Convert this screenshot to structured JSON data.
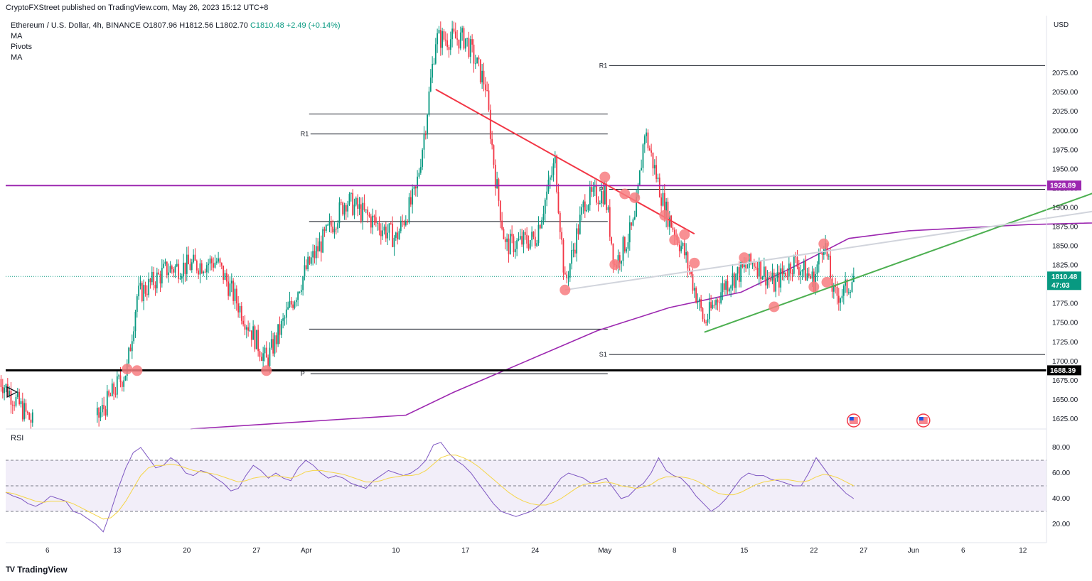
{
  "header": {
    "publisher": "CryptoFXStreet published on TradingView.com, May 26, 2023 15:12 UTC+8"
  },
  "legend": {
    "symbol_line": "Ethereum / U.S. Dollar, 4h, BINANCE",
    "open": "O1807.96",
    "high": "H1812.56",
    "low": "L1802.70",
    "close": "C1810.48",
    "change": "+2.49 (+0.14%)",
    "indicators": [
      "MA",
      "Pivots",
      "MA"
    ]
  },
  "rsi_label": "RSI",
  "footer": {
    "brand": "TradingView",
    "logo": "TV"
  },
  "currency": "USD",
  "colors": {
    "up": "#089981",
    "down": "#f23645",
    "ma200": "#9c27b0",
    "resistance": "#9c27b0",
    "trend_down": "#f23645",
    "trend_up": "#4caf50",
    "trend_grey": "#d1d4dc",
    "rsi_line": "#7e57c2",
    "rsi_ma": "#f5d547",
    "current_price": "#089981",
    "touch_dot": "#f77c80"
  },
  "chart_data": [
    {
      "type": "candlestick",
      "title": "Ethereum / U.S. Dollar, 4h, BINANCE",
      "y_axis": {
        "unit": "USD",
        "ylim": [
          1612,
          2150
        ],
        "ticks": [
          "1625.00",
          "1650.00",
          "1675.00",
          "1700.00",
          "1725.00",
          "1750.00",
          "1775.00",
          "1800.00",
          "1825.00",
          "1850.00",
          "1875.00",
          "1900.00",
          "1925.00",
          "1950.00",
          "1975.00",
          "2000.00",
          "2025.00",
          "2050.00",
          "2075.00"
        ]
      },
      "x_axis": {
        "ticks": [
          "6",
          "13",
          "20",
          "27",
          "Apr",
          "10",
          "17",
          "24",
          "May",
          "8",
          "15",
          "22",
          "27",
          "Jun",
          "6",
          "12"
        ]
      },
      "horizontal_levels": [
        {
          "name": "resistance",
          "value": 1928.89,
          "label": "1928.89"
        },
        {
          "name": "support",
          "value": 1688.39,
          "label": "1688.39"
        }
      ],
      "current_price": {
        "value": 1810.48,
        "label": "1810.48",
        "countdown": "47:03"
      },
      "pivots": [
        {
          "label": "R1",
          "value": 1996,
          "period": "April"
        },
        {
          "label": "P",
          "value": 1684,
          "period": "April"
        },
        {
          "label": "",
          "value": 2022,
          "period": "April"
        },
        {
          "label": "",
          "value": 1882,
          "period": "April"
        },
        {
          "label": "",
          "value": 1742,
          "period": "April"
        },
        {
          "label": "R1",
          "value": 2085,
          "period": "May"
        },
        {
          "label": "P",
          "value": 1924,
          "period": "May"
        },
        {
          "label": "S1",
          "value": 1709,
          "period": "May"
        }
      ],
      "ma200": [
        [
          0,
          1612
        ],
        [
          0.18,
          1630
        ],
        [
          0.22,
          1660
        ],
        [
          0.28,
          1700
        ],
        [
          0.34,
          1740
        ],
        [
          0.4,
          1770
        ],
        [
          0.46,
          1790
        ],
        [
          0.5,
          1820
        ],
        [
          0.52,
          1836
        ],
        [
          0.55,
          1860
        ],
        [
          0.6,
          1870
        ],
        [
          0.7,
          1878
        ],
        [
          0.8,
          1882
        ]
      ],
      "trendlines": [
        {
          "name": "downtrend",
          "from": [
            "Apr 14",
            2054
          ],
          "to": [
            "May 10",
            1866
          ]
        },
        {
          "name": "uptrend",
          "from": [
            "May 11",
            1738
          ],
          "to": [
            "Jun 21",
            1928
          ]
        },
        {
          "name": "upper-grey",
          "from": [
            "Apr 27",
            1793
          ],
          "to": [
            "Jun 21",
            1899
          ]
        }
      ],
      "candles_summary": {
        "key_points": [
          [
            "Mar 1",
            1680
          ],
          [
            "Mar 8",
            1560
          ],
          [
            "Mar 14",
            1690
          ],
          [
            "Mar 15",
            1785
          ],
          [
            "Mar 18",
            1820
          ],
          [
            "Mar 23",
            1830
          ],
          [
            "Mar 28",
            1700
          ],
          [
            "Apr 1",
            1820
          ],
          [
            "Apr 5",
            1910
          ],
          [
            "Apr 10",
            1860
          ],
          [
            "Apr 12",
            1920
          ],
          [
            "Apr 13",
            2010
          ],
          [
            "Apr 14",
            2120
          ],
          [
            "Apr 17",
            2120
          ],
          [
            "Apr 19",
            2060
          ],
          [
            "Apr 20",
            1940
          ],
          [
            "Apr 21",
            1850
          ],
          [
            "Apr 24",
            1860
          ],
          [
            "Apr 26",
            1960
          ],
          [
            "Apr 27",
            1800
          ],
          [
            "Apr 29",
            1910
          ],
          [
            "May 1",
            1920
          ],
          [
            "May 2",
            1825
          ],
          [
            "May 4",
            1880
          ],
          [
            "May 5",
            2000
          ],
          [
            "May 7",
            1900
          ],
          [
            "May 9",
            1840
          ],
          [
            "May 11",
            1750
          ],
          [
            "May 13",
            1800
          ],
          [
            "May 16",
            1830
          ],
          [
            "May 18",
            1800
          ],
          [
            "May 20",
            1830
          ],
          [
            "May 22",
            1805
          ],
          [
            "May 23",
            1860
          ],
          [
            "May 24",
            1785
          ],
          [
            "May 25",
            1790
          ],
          [
            "May 26",
            1810
          ]
        ]
      },
      "touch_points": [
        [
          "Mar 14",
          1690
        ],
        [
          "Mar 15",
          1688
        ],
        [
          "Mar 28",
          1688
        ],
        [
          "Apr 27",
          1793
        ],
        [
          "May 1",
          1940
        ],
        [
          "May 2",
          1826
        ],
        [
          "May 3",
          1918
        ],
        [
          "May 4",
          1913
        ],
        [
          "May 7",
          1890
        ],
        [
          "May 8",
          1858
        ],
        [
          "May 9",
          1865
        ],
        [
          "May 10",
          1828
        ],
        [
          "May 15",
          1835
        ],
        [
          "May 18",
          1771
        ],
        [
          "May 22",
          1797
        ],
        [
          "May 23",
          1853
        ],
        [
          "May 23b",
          1803
        ]
      ]
    },
    {
      "type": "line",
      "title": "RSI",
      "y_axis": {
        "ticks": [
          "20.00",
          "40.00",
          "60.00",
          "80.00"
        ],
        "ylim": [
          10,
          90
        ],
        "band": [
          30,
          70
        ],
        "mid": 50
      },
      "series": [
        {
          "values": [
            45,
            42,
            40,
            36,
            34,
            37,
            42,
            40,
            38,
            30,
            28,
            24,
            20,
            14,
            30,
            48,
            64,
            76,
            80,
            72,
            64,
            66,
            72,
            68,
            60,
            58,
            62,
            60,
            56,
            52,
            46,
            48,
            58,
            66,
            62,
            56,
            60,
            56,
            54,
            64,
            70,
            66,
            60,
            56,
            58,
            56,
            52,
            50,
            48,
            54,
            58,
            62,
            60,
            58,
            60,
            64,
            70,
            82,
            84,
            76,
            70,
            66,
            60,
            52,
            44,
            36,
            30,
            28,
            26,
            28,
            30,
            34,
            40,
            48,
            56,
            60,
            58,
            56,
            52,
            54,
            56,
            48,
            40,
            42,
            48,
            52,
            60,
            72,
            62,
            58,
            56,
            50,
            42,
            36,
            30,
            34,
            40,
            48,
            56,
            60,
            58,
            58,
            55,
            54,
            52,
            50,
            50,
            60,
            72,
            64,
            56,
            50,
            44,
            40
          ]
        },
        {
          "values": [
            45,
            44,
            42,
            40,
            38,
            37,
            38,
            38,
            38,
            36,
            33,
            30,
            27,
            24,
            25,
            30,
            38,
            48,
            58,
            64,
            66,
            66,
            67,
            66,
            64,
            62,
            61,
            60,
            59,
            57,
            55,
            53,
            54,
            56,
            57,
            57,
            58,
            57,
            56,
            58,
            61,
            62,
            62,
            61,
            60,
            59,
            57,
            55,
            53,
            53,
            54,
            56,
            57,
            58,
            58,
            59,
            62,
            67,
            72,
            74,
            74,
            72,
            69,
            65,
            60,
            55,
            50,
            45,
            41,
            38,
            36,
            35,
            35,
            37,
            40,
            44,
            48,
            51,
            52,
            52,
            53,
            52,
            50,
            49,
            48,
            49,
            51,
            55,
            57,
            57,
            57,
            56,
            54,
            51,
            47,
            44,
            43,
            43,
            45,
            48,
            51,
            53,
            54,
            55,
            55,
            54,
            53,
            54,
            57,
            59,
            58,
            56,
            53,
            50
          ]
        }
      ]
    }
  ]
}
